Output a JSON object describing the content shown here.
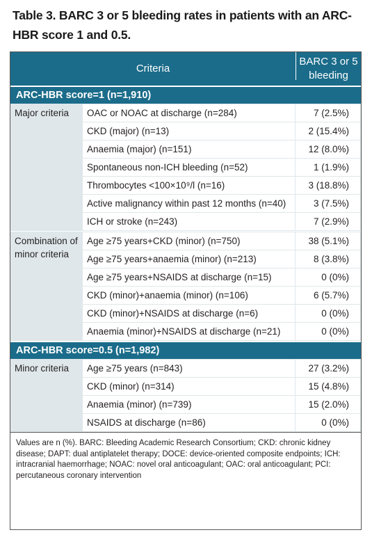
{
  "title": "Table 3. BARC 3 or 5 bleeding rates in patients with an ARC-HBR score 1 and 0.5.",
  "header": {
    "col1": "Criteria",
    "col2": "BARC 3 or 5 bleeding"
  },
  "sections": [
    {
      "label": "ARC-HBR score=1 (n=1,910)",
      "groups": [
        {
          "label": "Major criteria",
          "rows": [
            {
              "criterion": "OAC or NOAC at discharge (n=284)",
              "value": "7 (2.5%)"
            },
            {
              "criterion": "CKD (major) (n=13)",
              "value": "2 (15.4%)"
            },
            {
              "criterion": "Anaemia (major) (n=151)",
              "value": "12 (8.0%)"
            },
            {
              "criterion": "Spontaneous non-ICH bleeding (n=52)",
              "value": "1 (1.9%)"
            },
            {
              "criterion": "Thrombocytes <100×10⁹/l (n=16)",
              "value": "3 (18.8%)"
            },
            {
              "criterion": "Active malignancy within past 12 months (n=40)",
              "value": "3 (7.5%)"
            },
            {
              "criterion": "ICH or stroke (n=243)",
              "value": "7 (2.9%)"
            }
          ]
        },
        {
          "label": "Combination of minor criteria",
          "rows": [
            {
              "criterion": "Age ≥75 years+CKD (minor) (n=750)",
              "value": "38 (5.1%)"
            },
            {
              "criterion": "Age ≥75 years+anaemia (minor) (n=213)",
              "value": "8 (3.8%)"
            },
            {
              "criterion": "Age ≥75 years+NSAIDS at discharge (n=15)",
              "value": "0 (0%)"
            },
            {
              "criterion": "CKD (minor)+anaemia (minor) (n=106)",
              "value": "6 (5.7%)"
            },
            {
              "criterion": "CKD (minor)+NSAIDS at discharge (n=6)",
              "value": "0 (0%)"
            },
            {
              "criterion": "Anaemia (minor)+NSAIDS at discharge (n=21)",
              "value": "0 (0%)"
            }
          ]
        }
      ]
    },
    {
      "label": "ARC-HBR score=0.5 (n=1,982)",
      "groups": [
        {
          "label": "Minor criteria",
          "rows": [
            {
              "criterion": "Age ≥75 years (n=843)",
              "value": "27 (3.2%)"
            },
            {
              "criterion": "CKD (minor) (n=314)",
              "value": "15 (4.8%)"
            },
            {
              "criterion": "Anaemia (minor) (n=739)",
              "value": "15 (2.0%)"
            },
            {
              "criterion": "NSAIDS at discharge (n=86)",
              "value": "0 (0%)"
            }
          ]
        }
      ]
    }
  ],
  "footnote": "Values are n (%). BARC: Bleeding Academic Research Consortium; CKD: chronic kidney disease; DAPT: dual antiplatelet therapy; DOCE: device-oriented composite endpoints; ICH: intracranial haemorrhage; NOAC: novel oral anticoagulant; OAC: oral anticoagulant; PCI: percutaneous coronary intervention",
  "colors": {
    "header": "#1b6c8a",
    "grid": "#dfe7ea"
  }
}
